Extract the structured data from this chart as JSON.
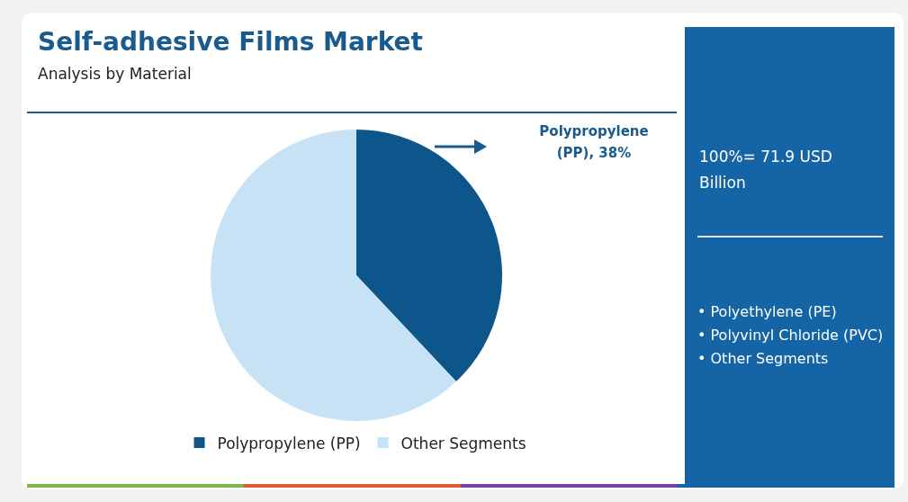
{
  "chart_data": {
    "type": "pie",
    "title": "Self-adhesive Films Market",
    "subtitle": "Analysis by Material",
    "categories": [
      "Polypropylene (PP)",
      "Other Segments"
    ],
    "values": [
      38,
      62
    ],
    "colors": [
      "#0d568c",
      "#c6e2f4"
    ],
    "legend": "bottom",
    "annotations": [
      "Polypropylene (PP), 38%",
      "100%= 71.9 USD Billion",
      "• Polyethylene (PE)",
      "• Polyvinyl Chloride (PVC)",
      "• Other Segments"
    ]
  }
}
